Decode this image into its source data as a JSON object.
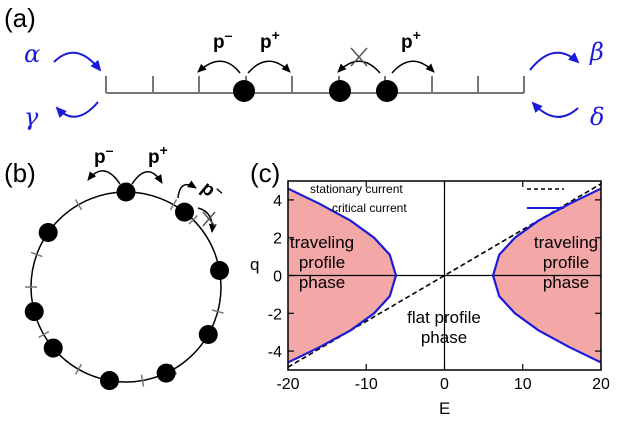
{
  "panel_a": {
    "label": "(a)",
    "rates": {
      "alpha": "α",
      "beta": "β",
      "gamma": "γ",
      "delta": "δ"
    },
    "hop_labels": {
      "p_minus": "p",
      "p_plus": "p",
      "minus_sup": "–",
      "plus_sup": "+"
    }
  },
  "panel_b": {
    "label": "(b)",
    "hop_labels": {
      "p_minus": "p",
      "p_plus": "p",
      "minus_sup": "–",
      "plus_sup": "+"
    }
  },
  "panel_c": {
    "label": "(c)",
    "legend": {
      "stationary": "stationary current",
      "critical": "critical current"
    },
    "regions": {
      "traveling_left": [
        "traveling",
        "profile",
        "phase"
      ],
      "traveling_right": [
        "traveling",
        "profile",
        "phase"
      ],
      "flat": [
        "flat profile",
        "phase"
      ]
    },
    "colors": {
      "fill": "#f4a7a7",
      "critical": "#1a1ad8",
      "stationary": "#000000"
    }
  },
  "chart_data": {
    "type": "line",
    "xlabel": "E",
    "ylabel": "q",
    "xlim": [
      -20,
      20
    ],
    "ylim": [
      -5,
      5
    ],
    "xticks": [
      -20,
      -10,
      0,
      10,
      20
    ],
    "yticks": [
      -4,
      -2,
      0,
      2,
      4
    ],
    "series": [
      {
        "name": "stationary current",
        "style": "dashed",
        "color": "#000000",
        "x": [
          -20,
          20
        ],
        "y": [
          -4.85,
          4.85
        ]
      },
      {
        "name": "critical current",
        "style": "solid",
        "color": "#1a1ad8",
        "x": [
          -20,
          -16,
          -12,
          -9,
          -7,
          -6.2,
          -7,
          -9,
          -12,
          -16,
          -20
        ],
        "y": [
          4.6,
          3.8,
          2.9,
          2.0,
          1.1,
          0,
          -1.1,
          -2.0,
          -2.9,
          -3.8,
          -4.6
        ]
      },
      {
        "name": "critical current",
        "style": "solid",
        "color": "#1a1ad8",
        "x": [
          20,
          16,
          12,
          9,
          7,
          6.2,
          7,
          9,
          12,
          16,
          20
        ],
        "y": [
          4.6,
          3.8,
          2.9,
          2.0,
          1.1,
          0,
          -1.1,
          -2.0,
          -2.9,
          -3.8,
          -4.6
        ]
      }
    ]
  }
}
